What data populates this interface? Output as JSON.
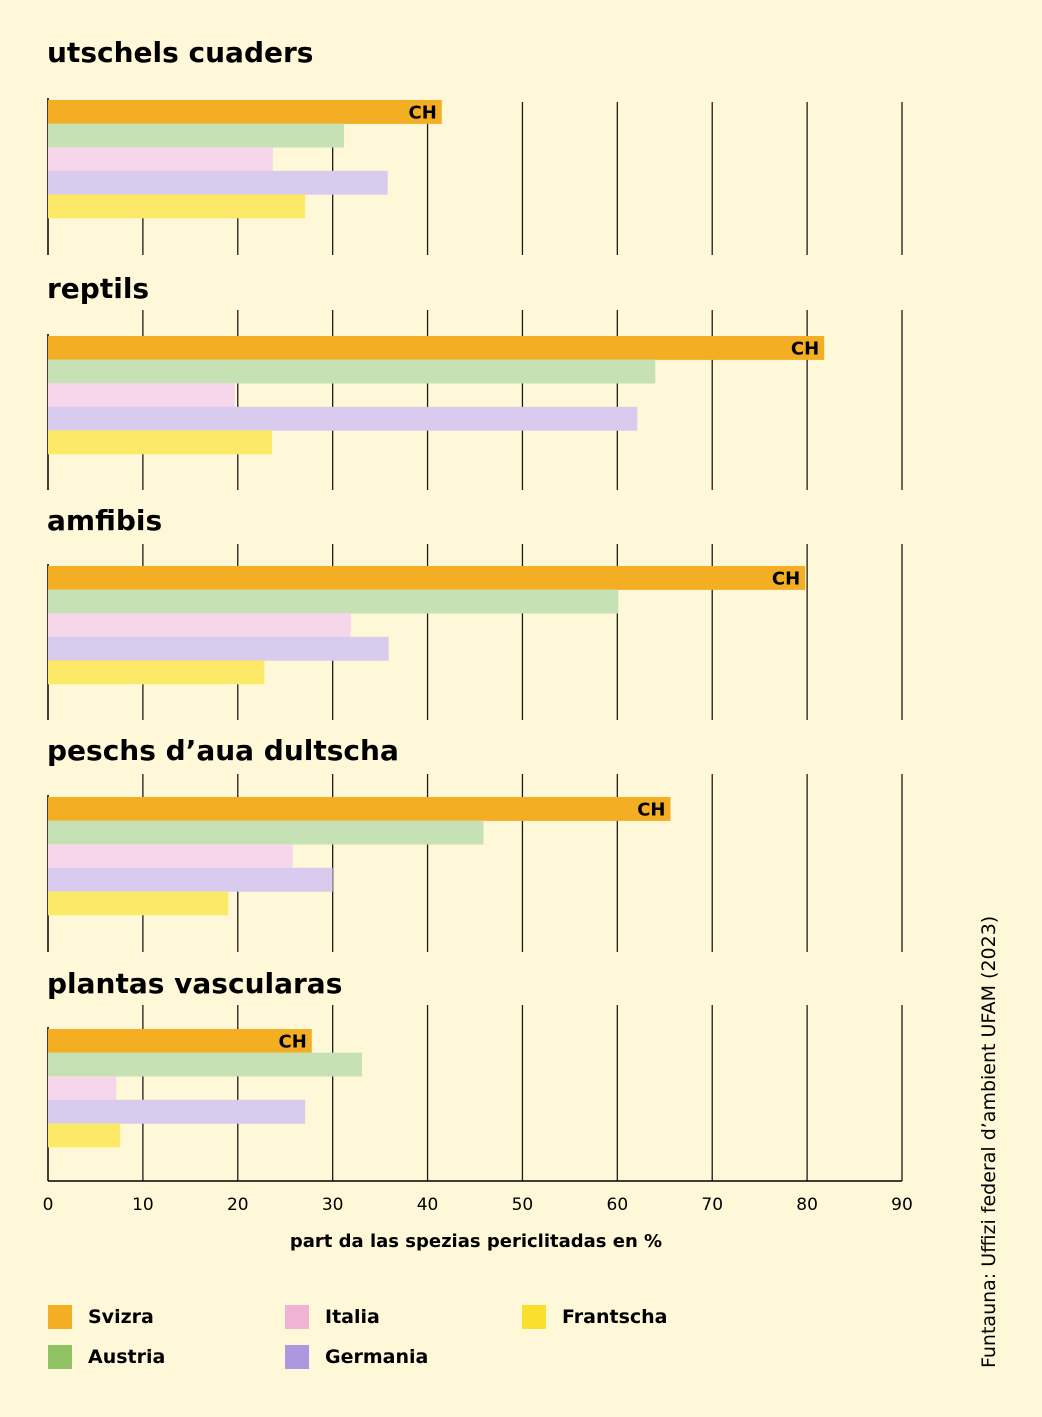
{
  "chart_data": {
    "type": "bar",
    "orientation": "horizontal",
    "groups": [
      {
        "title": "utschels cuaders",
        "values": [
          41.5,
          31.2,
          23.7,
          35.8,
          27.1
        ]
      },
      {
        "title": "reptils",
        "values": [
          81.8,
          64.0,
          19.7,
          62.1,
          23.6
        ]
      },
      {
        "title": "amfibis",
        "values": [
          79.8,
          60.1,
          31.9,
          35.9,
          22.8
        ]
      },
      {
        "title": "peschs d’aua dultscha",
        "values": [
          65.6,
          45.9,
          25.8,
          30.0,
          19.0
        ]
      },
      {
        "title": "plantas vascularas",
        "values": [
          27.8,
          33.1,
          7.2,
          27.1,
          7.6
        ]
      }
    ],
    "series": [
      {
        "name": "Svizra",
        "bar_color": "#f4ae24",
        "legend_color": "#f4ae24"
      },
      {
        "name": "Austria",
        "bar_color": "#c6e2b4",
        "legend_color": "#8fc263"
      },
      {
        "name": "Italia",
        "bar_color": "#f6d6ea",
        "legend_color": "#eeb3d5"
      },
      {
        "name": "Germania",
        "bar_color": "#d8cbee",
        "legend_color": "#ac97e1"
      },
      {
        "name": "Frantscha",
        "bar_color": "#fce968",
        "legend_color": "#f9df2e"
      }
    ],
    "highlight_label": "CH",
    "xlabel": "part da las spezias periclitadas en %",
    "xticks": [
      0,
      10,
      20,
      30,
      40,
      50,
      60,
      70,
      80,
      90
    ],
    "xlim": [
      0,
      90
    ],
    "grid": true,
    "legend_position": "bottom"
  },
  "source": "Funtauna: Uffizi federal d’ambient UFAM (2023)"
}
